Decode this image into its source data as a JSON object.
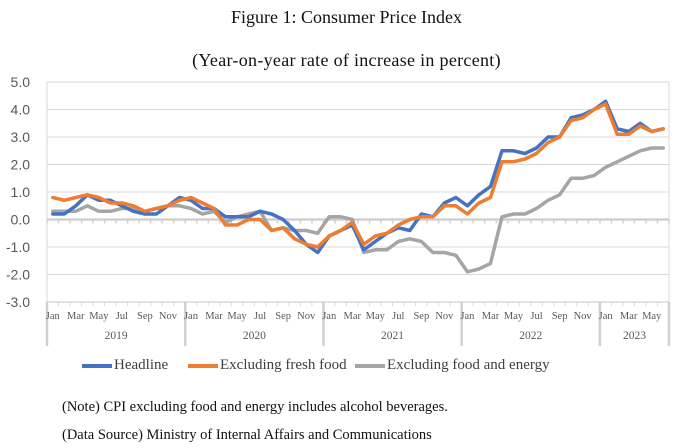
{
  "chart_data": {
    "type": "line",
    "title": "Figure 1: Consumer Price Index",
    "subtitle": "(Year-on-year rate of increase in percent)",
    "xlabel": "",
    "ylabel": "",
    "ylim": [
      -3.0,
      5.0
    ],
    "yticks": [
      "5.0",
      "4.0",
      "3.0",
      "2.0",
      "1.0",
      "0.0",
      "-1.0",
      "-2.0",
      "-3.0"
    ],
    "grid": true,
    "legend_position": "bottom",
    "month_tick_labels": [
      "Jan",
      "Mar",
      "May",
      "Jul",
      "Sep",
      "Nov"
    ],
    "years": [
      {
        "label": "2019",
        "months": 12
      },
      {
        "label": "2020",
        "months": 12
      },
      {
        "label": "2021",
        "months": 12
      },
      {
        "label": "2022",
        "months": 12
      },
      {
        "label": "2023",
        "months": 6
      }
    ],
    "x_range": "Jan 2019 – Jun 2023",
    "series": [
      {
        "name": "Headline",
        "color": "#4472C4",
        "values": [
          0.2,
          0.2,
          0.5,
          0.9,
          0.7,
          0.7,
          0.5,
          0.3,
          0.2,
          0.2,
          0.5,
          0.8,
          0.7,
          0.4,
          0.4,
          0.1,
          0.1,
          0.1,
          0.3,
          0.2,
          0.0,
          -0.4,
          -0.9,
          -1.2,
          -0.6,
          -0.4,
          -0.2,
          -1.1,
          -0.8,
          -0.5,
          -0.3,
          -0.4,
          0.2,
          0.1,
          0.6,
          0.8,
          0.5,
          0.9,
          1.2,
          2.5,
          2.5,
          2.4,
          2.6,
          3.0,
          3.0,
          3.7,
          3.8,
          4.0,
          4.3,
          3.3,
          3.2,
          3.5,
          3.2,
          3.3
        ]
      },
      {
        "name": "Excluding fresh food",
        "color": "#ED7D31",
        "values": [
          0.8,
          0.7,
          0.8,
          0.9,
          0.8,
          0.6,
          0.6,
          0.5,
          0.3,
          0.4,
          0.5,
          0.7,
          0.8,
          0.6,
          0.4,
          -0.2,
          -0.2,
          0.0,
          0.0,
          -0.4,
          -0.3,
          -0.7,
          -0.9,
          -1.0,
          -0.6,
          -0.4,
          -0.1,
          -0.9,
          -0.6,
          -0.5,
          -0.2,
          0.0,
          0.1,
          0.1,
          0.5,
          0.5,
          0.2,
          0.6,
          0.8,
          2.1,
          2.1,
          2.2,
          2.4,
          2.8,
          3.0,
          3.6,
          3.7,
          4.0,
          4.2,
          3.1,
          3.1,
          3.4,
          3.2,
          3.3
        ]
      },
      {
        "name": "Excluding food and energy",
        "color": "#A5A5A5",
        "values": [
          0.3,
          0.3,
          0.3,
          0.5,
          0.3,
          0.3,
          0.4,
          0.4,
          0.3,
          0.4,
          0.5,
          0.5,
          0.4,
          0.2,
          0.3,
          -0.1,
          0.1,
          0.2,
          0.3,
          -0.4,
          -0.3,
          -0.4,
          -0.4,
          -0.5,
          0.1,
          0.1,
          0.0,
          -1.2,
          -1.1,
          -1.1,
          -0.8,
          -0.7,
          -0.8,
          -1.2,
          -1.2,
          -1.3,
          -1.9,
          -1.8,
          -1.6,
          0.1,
          0.2,
          0.2,
          0.4,
          0.7,
          0.9,
          1.5,
          1.5,
          1.6,
          1.9,
          2.1,
          2.3,
          2.5,
          2.6,
          2.6
        ]
      }
    ]
  },
  "notes": {
    "note": "(Note) CPI excluding food and energy includes alcohol beverages.",
    "source": "(Data Source) Ministry of Internal Affairs and Communications"
  }
}
